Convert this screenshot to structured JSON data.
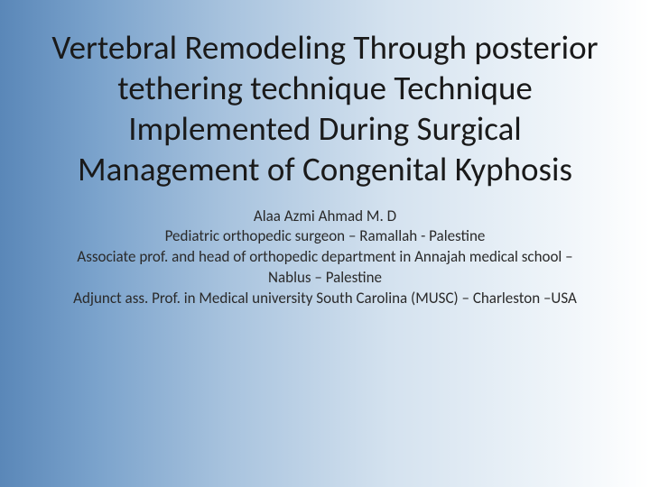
{
  "slide": {
    "title": "Vertebral Remodeling Through posterior tethering technique Technique Implemented During Surgical Management of Congenital Kyphosis",
    "credits": {
      "line1": "Alaa Azmi Ahmad M. D",
      "line2": "Pediatric orthopedic surgeon – Ramallah - Palestine",
      "line3": "Associate prof. and head of orthopedic department in Annajah medical school –Nablus – Palestine",
      "line4": "Adjunct ass. Prof. in Medical university South Carolina (MUSC) – Charleston –USA"
    }
  },
  "styles": {
    "background_gradient_start": "#5a87b8",
    "background_gradient_end": "#ffffff",
    "title_color": "#1a1a1a",
    "title_fontsize": 37,
    "credits_color": "#2a2a2a",
    "credits_fontsize": 17,
    "font_family": "Calibri"
  }
}
